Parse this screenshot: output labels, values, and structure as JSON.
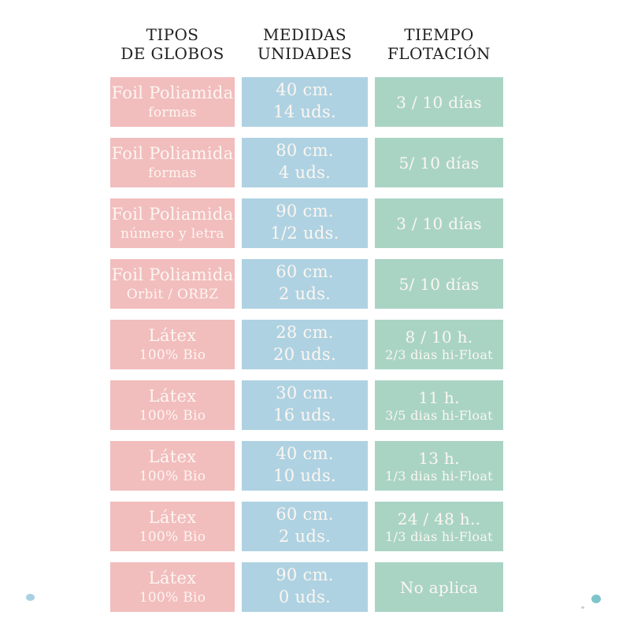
{
  "colors": {
    "pink": "#f2bdbd",
    "blue": "#aed2e2",
    "green": "#a9d4c4",
    "cell_text": "#fcf6f0",
    "header_text": "#222222",
    "dot_left": "#a9cfe2",
    "dot_right": "#7ec4cb",
    "speck": "#c9ced0"
  },
  "headers": [
    {
      "line1": "TIPOS",
      "line2": "DE GLOBOS"
    },
    {
      "line1": "MEDIDAS",
      "line2": "UNIDADES"
    },
    {
      "line1": "TIEMPO",
      "line2": "FLOTACIÓN"
    }
  ],
  "rows": [
    {
      "tipo_line1": "Foil Poliamida",
      "tipo_line2": "formas",
      "medida_line1": "40 cm.",
      "medida_line2": "14 uds.",
      "tiempo_line1": "3 / 10 días",
      "tiempo_line2": ""
    },
    {
      "tipo_line1": "Foil Poliamida",
      "tipo_line2": "formas",
      "medida_line1": "80 cm.",
      "medida_line2": "4 uds.",
      "tiempo_line1": "5/ 10 días",
      "tiempo_line2": ""
    },
    {
      "tipo_line1": "Foil Poliamida",
      "tipo_line2": "número y letra",
      "medida_line1": "90 cm.",
      "medida_line2": "1/2 uds.",
      "tiempo_line1": "3 / 10 días",
      "tiempo_line2": ""
    },
    {
      "tipo_line1": "Foil Poliamida",
      "tipo_line2": "Orbit / ORBZ",
      "medida_line1": "60 cm.",
      "medida_line2": "2 uds.",
      "tiempo_line1": "5/ 10 días",
      "tiempo_line2": ""
    },
    {
      "tipo_line1": "Látex",
      "tipo_line2": "100% Bio",
      "medida_line1": "28 cm.",
      "medida_line2": "20 uds.",
      "tiempo_line1": "8 / 10 h.",
      "tiempo_line2": "2/3 dias hi-Float"
    },
    {
      "tipo_line1": "Látex",
      "tipo_line2": "100% Bio",
      "medida_line1": "30 cm.",
      "medida_line2": "16 uds.",
      "tiempo_line1": "11 h.",
      "tiempo_line2": "3/5 dias hi-Float"
    },
    {
      "tipo_line1": "Látex",
      "tipo_line2": "100% Bio",
      "medida_line1": "40 cm.",
      "medida_line2": "10 uds.",
      "tiempo_line1": "13 h.",
      "tiempo_line2": "1/3 dias hi-Float"
    },
    {
      "tipo_line1": "Látex",
      "tipo_line2": "100% Bio",
      "medida_line1": "60 cm.",
      "medida_line2": "2 uds.",
      "tiempo_line1": "24 / 48 h..",
      "tiempo_line2": "1/3 dias hi-Float"
    },
    {
      "tipo_line1": "Látex",
      "tipo_line2": "100% Bio",
      "medida_line1": "90 cm.",
      "medida_line2": "0 uds.",
      "tiempo_line1": "No aplica",
      "tiempo_line2": ""
    }
  ],
  "chart_data": {
    "type": "table",
    "title": "",
    "columns": [
      "TIPOS DE GLOBOS",
      "MEDIDAS UNIDADES",
      "TIEMPO FLOTACIÓN"
    ],
    "rows": [
      [
        "Foil Poliamida formas",
        "40 cm. 14 uds.",
        "3 / 10 días"
      ],
      [
        "Foil Poliamida formas",
        "80 cm. 4 uds.",
        "5/ 10 días"
      ],
      [
        "Foil Poliamida número y letra",
        "90 cm. 1/2 uds.",
        "3 / 10 días"
      ],
      [
        "Foil Poliamida Orbit / ORBZ",
        "60 cm. 2 uds.",
        "5/ 10 días"
      ],
      [
        "Látex 100% Bio",
        "28 cm. 20 uds.",
        "8 / 10 h. 2/3 dias hi-Float"
      ],
      [
        "Látex 100% Bio",
        "30 cm. 16 uds.",
        "11 h. 3/5 dias hi-Float"
      ],
      [
        "Látex 100% Bio",
        "40 cm. 10 uds.",
        "13 h. 1/3 dias hi-Float"
      ],
      [
        "Látex 100% Bio",
        "60 cm. 2 uds.",
        "24 / 48 h.. 1/3 dias hi-Float"
      ],
      [
        "Látex 100% Bio",
        "90 cm. 0 uds.",
        "No aplica"
      ]
    ],
    "layout": {
      "grid": false,
      "cell_colors_by_column": [
        "#f2bdbd",
        "#aed2e2",
        "#a9d4c4"
      ]
    }
  }
}
